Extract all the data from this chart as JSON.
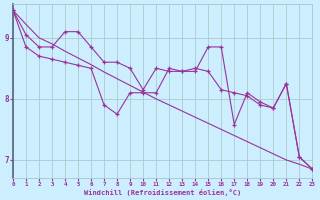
{
  "xlabel": "Windchill (Refroidissement éolien,°C)",
  "bg_color": "#cceeff",
  "line_color": "#993399",
  "grid_color": "#aacccc",
  "x_ticks": [
    0,
    1,
    2,
    3,
    4,
    5,
    6,
    7,
    8,
    9,
    10,
    11,
    12,
    13,
    14,
    15,
    16,
    17,
    18,
    19,
    20,
    21,
    22,
    23
  ],
  "y_ticks": [
    7,
    8,
    9
  ],
  "ylim": [
    6.7,
    9.55
  ],
  "xlim": [
    0,
    23
  ],
  "line1_x": [
    0,
    1,
    2,
    3,
    4,
    5,
    6,
    7,
    8,
    9,
    10,
    11,
    12,
    13,
    14,
    15,
    16,
    17,
    18,
    19,
    20,
    21,
    22,
    23
  ],
  "line1_y": [
    9.45,
    9.05,
    8.85,
    8.85,
    9.1,
    9.1,
    8.85,
    8.6,
    8.6,
    8.5,
    8.15,
    8.5,
    8.45,
    8.45,
    8.5,
    8.45,
    8.15,
    8.1,
    8.05,
    7.9,
    7.85,
    8.25,
    7.05,
    6.85
  ],
  "line2_x": [
    0,
    1,
    2,
    3,
    4,
    5,
    6,
    7,
    8,
    9,
    10,
    11,
    12,
    13,
    14,
    15,
    16,
    17,
    18,
    19,
    20,
    21,
    22,
    23
  ],
  "line2_y": [
    9.45,
    8.85,
    8.7,
    8.65,
    8.6,
    8.55,
    8.5,
    7.9,
    7.75,
    8.1,
    8.1,
    8.1,
    8.5,
    8.45,
    8.45,
    8.85,
    8.85,
    7.58,
    8.1,
    7.95,
    7.85,
    8.25,
    7.05,
    6.85
  ],
  "line3_x": [
    0,
    1,
    2,
    3,
    4,
    5,
    6,
    7,
    8,
    9,
    10,
    11,
    12,
    13,
    14,
    15,
    16,
    17,
    18,
    19,
    20,
    21,
    22,
    23
  ],
  "line3_y": [
    9.45,
    9.22,
    9.0,
    8.9,
    8.78,
    8.67,
    8.56,
    8.44,
    8.33,
    8.22,
    8.11,
    8.0,
    7.9,
    7.8,
    7.7,
    7.6,
    7.5,
    7.4,
    7.3,
    7.2,
    7.1,
    7.0,
    6.93,
    6.85
  ]
}
